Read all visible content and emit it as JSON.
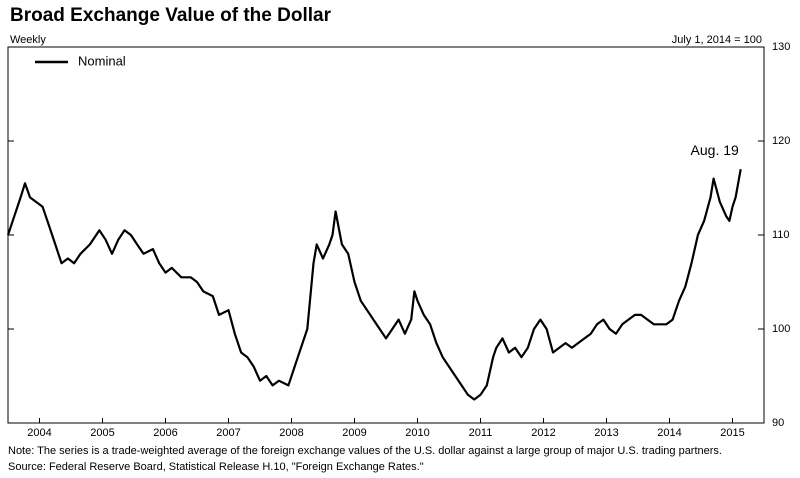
{
  "chart_data": {
    "type": "line",
    "title": "Broad Exchange Value of the Dollar",
    "subtitle": "Weekly",
    "y_axis_label": "July 1, 2014 = 100",
    "annotation": "Aug. 19",
    "notes": [
      "Note: The series is a trade-weighted average of the foreign exchange values of the U.S. dollar against a large group of major U.S. trading partners.",
      "Source: Federal Reserve Board, Statistical Release H.10, \"Foreign Exchange Rates.\""
    ],
    "x": [
      2004.0,
      2004.1,
      2004.2,
      2004.27,
      2004.35,
      2004.45,
      2004.55,
      2004.65,
      2004.75,
      2004.85,
      2004.95,
      2005.05,
      2005.15,
      2005.3,
      2005.45,
      2005.55,
      2005.65,
      2005.75,
      2005.85,
      2005.95,
      2006.05,
      2006.15,
      2006.3,
      2006.4,
      2006.5,
      2006.6,
      2006.75,
      2006.9,
      2007.0,
      2007.1,
      2007.25,
      2007.35,
      2007.5,
      2007.6,
      2007.7,
      2007.8,
      2007.9,
      2008.0,
      2008.1,
      2008.2,
      2008.3,
      2008.45,
      2008.6,
      2008.75,
      2008.85,
      2008.9,
      2009.0,
      2009.1,
      2009.15,
      2009.2,
      2009.3,
      2009.4,
      2009.5,
      2009.6,
      2009.7,
      2009.8,
      2009.9,
      2010.0,
      2010.1,
      2010.2,
      2010.3,
      2010.4,
      2010.45,
      2010.5,
      2010.6,
      2010.7,
      2010.8,
      2010.9,
      2011.0,
      2011.1,
      2011.2,
      2011.3,
      2011.4,
      2011.5,
      2011.6,
      2011.7,
      2011.75,
      2011.85,
      2011.95,
      2012.05,
      2012.15,
      2012.25,
      2012.35,
      2012.45,
      2012.55,
      2012.65,
      2012.75,
      2012.85,
      2012.95,
      2013.05,
      2013.15,
      2013.25,
      2013.35,
      2013.45,
      2013.55,
      2013.65,
      2013.75,
      2013.85,
      2013.95,
      2014.05,
      2014.15,
      2014.25,
      2014.35,
      2014.45,
      2014.55,
      2014.65,
      2014.75,
      2014.85,
      2014.95,
      2015.05,
      2015.15,
      2015.2,
      2015.3,
      2015.4,
      2015.45,
      2015.5,
      2015.55,
      2015.63
    ],
    "series": [
      {
        "name": "Nominal",
        "color": "#000000",
        "values": [
          110,
          112,
          114,
          115.5,
          114,
          113.5,
          113,
          111,
          109,
          107,
          107.5,
          107,
          108,
          109,
          110.5,
          109.5,
          108,
          109.5,
          110.5,
          110,
          109,
          108,
          108.5,
          107,
          106,
          106.5,
          105.5,
          105.5,
          105,
          104,
          103.5,
          101.5,
          102,
          99.5,
          97.5,
          97,
          96,
          94.5,
          95,
          94,
          94.5,
          94,
          97,
          100,
          107,
          109,
          107.5,
          109,
          110,
          112.5,
          109,
          108,
          105,
          103,
          102,
          101,
          100,
          99,
          100,
          101,
          99.5,
          101,
          104,
          103,
          101.5,
          100.5,
          98.5,
          97,
          96,
          95,
          94,
          93,
          92.5,
          93,
          94,
          97,
          98,
          99,
          97.5,
          98,
          97,
          98,
          100,
          101,
          100,
          97.5,
          98,
          98.5,
          98,
          98.5,
          99,
          99.5,
          100.5,
          101,
          100,
          99.5,
          100.5,
          101,
          101.5,
          101.5,
          101,
          100.5,
          100.5,
          100.5,
          101,
          103,
          104.5,
          107,
          110,
          111.5,
          114,
          116,
          113.5,
          112,
          111.5,
          113,
          114,
          117
        ]
      }
    ],
    "xlim": [
      2004,
      2016
    ],
    "xticks": [
      {
        "value": 2004.5,
        "label": "2004"
      },
      {
        "value": 2005.5,
        "label": "2005"
      },
      {
        "value": 2006.5,
        "label": "2006"
      },
      {
        "value": 2007.5,
        "label": "2007"
      },
      {
        "value": 2008.5,
        "label": "2008"
      },
      {
        "value": 2009.5,
        "label": "2009"
      },
      {
        "value": 2010.5,
        "label": "2010"
      },
      {
        "value": 2011.5,
        "label": "2011"
      },
      {
        "value": 2012.5,
        "label": "2012"
      },
      {
        "value": 2013.5,
        "label": "2013"
      },
      {
        "value": 2014.5,
        "label": "2014"
      },
      {
        "value": 2015.5,
        "label": "2015"
      }
    ],
    "ylim": [
      90,
      130
    ],
    "yticks": [
      90,
      100,
      110,
      120,
      130
    ],
    "legend": "upper left"
  }
}
